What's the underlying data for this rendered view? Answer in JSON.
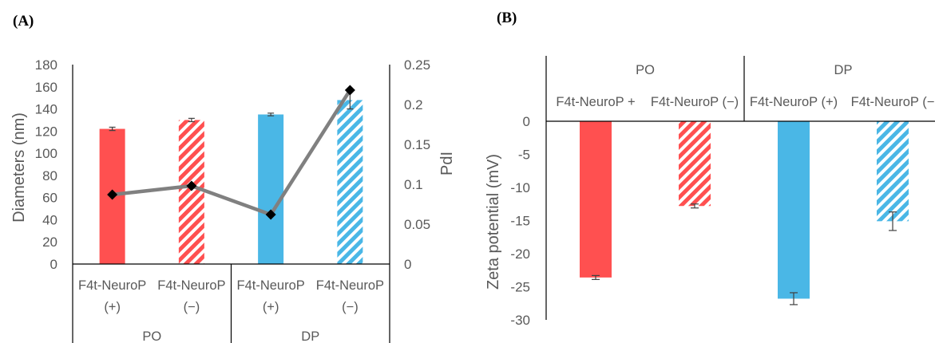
{
  "chart_data": [
    {
      "panel_label": "(A)",
      "type": "bar",
      "ylabel": "Diameters (nm)",
      "y2label": "PdI",
      "ylim": [
        0,
        180
      ],
      "y2lim": [
        0,
        0.25
      ],
      "yticks": [
        "0",
        "20",
        "40",
        "60",
        "80",
        "100",
        "120",
        "140",
        "160",
        "180"
      ],
      "y2ticks": [
        "0",
        "0.05",
        "0.1",
        "0.15",
        "0.2",
        "0.25"
      ],
      "categories": [
        {
          "line1": "F4t-NeuroP",
          "line2": "(+)"
        },
        {
          "line1": "F4t-NeuroP",
          "line2": "(−)"
        },
        {
          "line1": "F4t-NeuroP",
          "line2": "(+)"
        },
        {
          "line1": "F4t-NeuroP",
          "line2": "(−)"
        }
      ],
      "groups": [
        "PO",
        "DP"
      ],
      "diameter_values": [
        122,
        130,
        135,
        148
      ],
      "diameter_errors": [
        1.5,
        1.5,
        1.2,
        8
      ],
      "pdi_values": [
        0.087,
        0.098,
        0.062,
        0.218
      ],
      "bar_fill": [
        "solid",
        "hatched",
        "solid",
        "hatched"
      ],
      "bar_colors": [
        "#ff5050",
        "#ff5050",
        "#4ab7e6",
        "#4ab7e6"
      ],
      "line_color": "#808080",
      "marker_color": "#000000"
    },
    {
      "panel_label": "(B)",
      "type": "bar",
      "ylabel": "Zeta potential (mV)",
      "ylim": [
        -30,
        0
      ],
      "yticks": [
        "0",
        "-5",
        "-10",
        "-15",
        "-20",
        "-25",
        "-30"
      ],
      "categories": [
        "F4t-NeuroP +",
        "F4t-NeuroP (−)",
        "F4t-NeuroP (+)",
        "F4t-NeuroP (−"
      ],
      "groups": [
        "PO",
        "DP"
      ],
      "values": [
        -23.6,
        -12.8,
        -26.8,
        -15.1
      ],
      "errors": [
        0.3,
        0.3,
        0.9,
        1.4
      ],
      "bar_fill": [
        "solid",
        "hatched",
        "solid",
        "hatched"
      ],
      "bar_colors": [
        "#ff5050",
        "#ff5050",
        "#4ab7e6",
        "#4ab7e6"
      ]
    }
  ]
}
